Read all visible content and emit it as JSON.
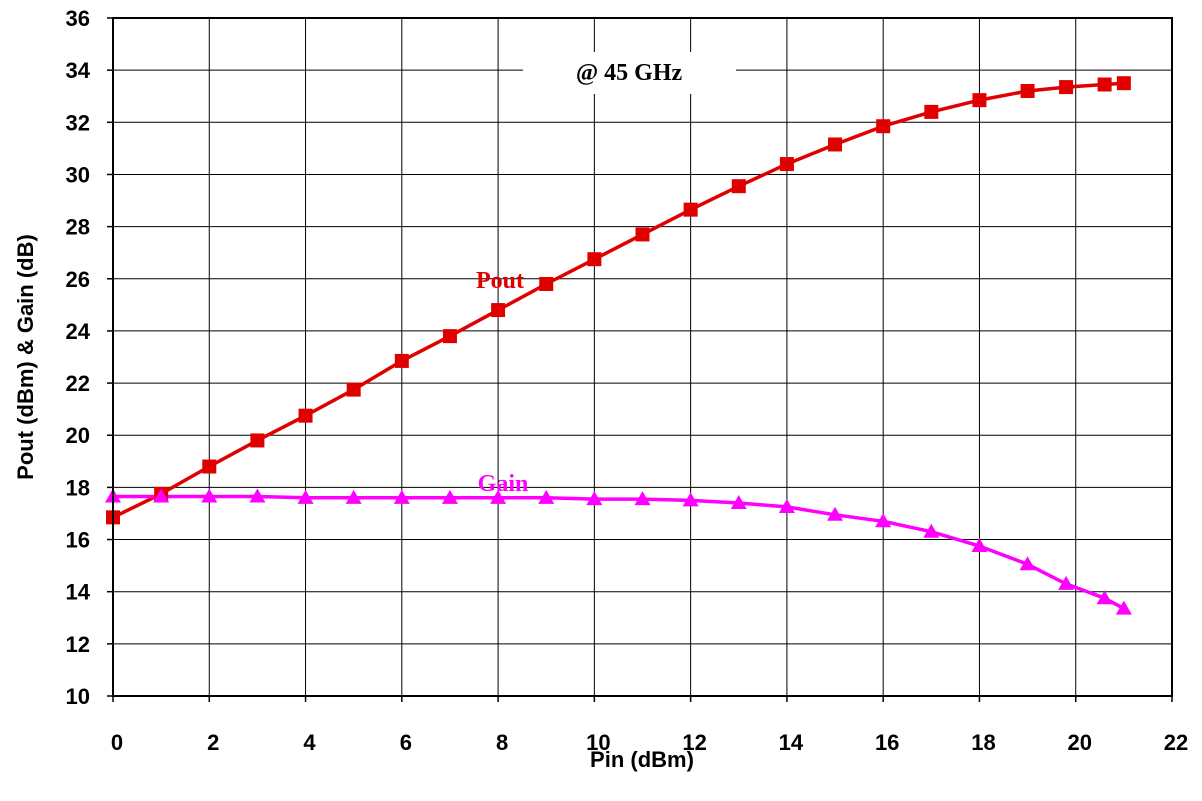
{
  "chart_data": {
    "type": "line",
    "title": "",
    "xlabel": "Pin (dBm)",
    "ylabel": "Pout (dBm) & Gain (dB)",
    "xlim": [
      0,
      22
    ],
    "ylim": [
      10,
      36
    ],
    "x_ticks": [
      "0",
      "2",
      "4",
      "6",
      "8",
      "10",
      "12",
      "14",
      "16",
      "18",
      "20",
      "22"
    ],
    "y_ticks": [
      "10",
      "12",
      "14",
      "16",
      "18",
      "20",
      "22",
      "24",
      "26",
      "28",
      "30",
      "32",
      "34",
      "36"
    ],
    "grid": true,
    "annotation": "@ 45 GHz",
    "series": [
      {
        "name": "Pout",
        "color": "#e00000",
        "marker": "square",
        "x": [
          0,
          1,
          2,
          3,
          4,
          5,
          6,
          7,
          8,
          9,
          10,
          11,
          12,
          13,
          14,
          15,
          16,
          17,
          18,
          19,
          19.8,
          20.6,
          21
        ],
        "y": [
          16.85,
          17.75,
          18.8,
          19.8,
          20.75,
          21.75,
          22.85,
          23.8,
          24.8,
          25.8,
          26.75,
          27.7,
          28.65,
          29.55,
          30.4,
          31.15,
          31.85,
          32.4,
          32.85,
          33.2,
          33.35,
          33.45,
          33.5
        ]
      },
      {
        "name": "Gain",
        "color": "#ff00ff",
        "marker": "triangle",
        "x": [
          0,
          1,
          2,
          3,
          4,
          5,
          6,
          7,
          8,
          9,
          10,
          11,
          12,
          13,
          14,
          15,
          16,
          17,
          18,
          19,
          19.8,
          20.6,
          21
        ],
        "y": [
          17.65,
          17.65,
          17.65,
          17.65,
          17.6,
          17.6,
          17.6,
          17.6,
          17.6,
          17.6,
          17.55,
          17.55,
          17.5,
          17.4,
          17.25,
          16.95,
          16.7,
          16.3,
          15.75,
          15.05,
          14.3,
          13.75,
          13.35
        ]
      }
    ]
  }
}
